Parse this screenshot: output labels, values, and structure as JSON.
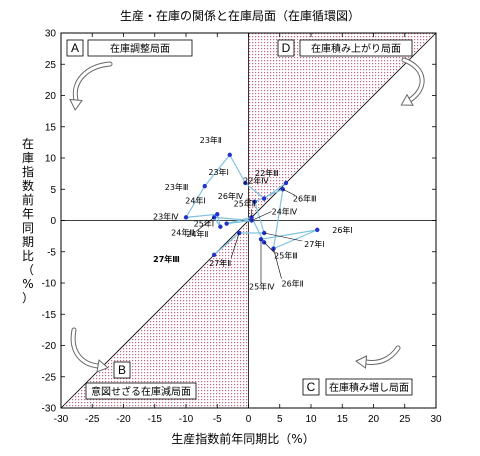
{
  "chart_data": {
    "type": "scatter",
    "title": "生産・在庫の関係と在庫局面（在庫循環図）",
    "xlabel": "生産指数前年同期比（%）",
    "ylabel": "在庫指数前年同期比（%）",
    "xlim": [
      -30,
      30
    ],
    "ylim": [
      -30,
      30
    ],
    "xticks": [
      -30,
      -25,
      -20,
      -15,
      -10,
      -5,
      0,
      5,
      10,
      15,
      20,
      25,
      30
    ],
    "yticks": [
      -30,
      -25,
      -20,
      -15,
      -10,
      -5,
      0,
      5,
      10,
      15,
      20,
      25,
      30
    ],
    "grid": false,
    "reference_line": "45-degree diagonal",
    "quadrants": [
      {
        "letter": "A",
        "name": "在庫調整局面"
      },
      {
        "letter": "B",
        "name": "意図せざる在庫減局面"
      },
      {
        "letter": "C",
        "name": "在庫積み増し局面"
      },
      {
        "letter": "D",
        "name": "在庫積み上がり局面"
      }
    ],
    "points": [
      {
        "label": "23年Ⅱ",
        "x": -3,
        "y": 10.5
      },
      {
        "label": "23年Ⅲ",
        "x": -7,
        "y": 5.5
      },
      {
        "label": "23年Ⅳ",
        "x": -10,
        "y": 0.5
      },
      {
        "label": "24年Ⅰ",
        "x": -5,
        "y": 1
      },
      {
        "label": "24年Ⅱ",
        "x": -4.5,
        "y": -1
      },
      {
        "label": "24年Ⅲ",
        "x": -5.5,
        "y": 0.5
      },
      {
        "label": "24年Ⅳ",
        "x": 0.5,
        "y": 0
      },
      {
        "label": "25年Ⅰ",
        "x": -3.5,
        "y": -0.5
      },
      {
        "label": "25年Ⅱ",
        "x": 0.5,
        "y": 0.5
      },
      {
        "label": "25年Ⅲ",
        "x": 2.5,
        "y": -3.5
      },
      {
        "label": "25年Ⅳ",
        "x": 2,
        "y": -3
      },
      {
        "label": "26年Ⅰ",
        "x": 11,
        "y": -1.5
      },
      {
        "label": "26年Ⅱ",
        "x": 4,
        "y": -4.5
      },
      {
        "label": "26年Ⅲ",
        "x": 5.5,
        "y": 5
      },
      {
        "label": "26年Ⅳ",
        "x": 1,
        "y": 3
      },
      {
        "label": "27年Ⅰ",
        "x": 2.5,
        "y": -2
      },
      {
        "label": "27年Ⅱ",
        "x": -1.5,
        "y": -2
      },
      {
        "label": "27年Ⅲ",
        "x": -5.5,
        "y": -5.5
      },
      {
        "label": "22年Ⅳ",
        "x": 2.5,
        "y": 3.5
      },
      {
        "label": "22年Ⅲ",
        "x": 6,
        "y": 6
      },
      {
        "label": "23年Ⅰ",
        "x": -0.5,
        "y": 6
      }
    ],
    "path": [
      "22年Ⅲ",
      "22年Ⅳ",
      "23年Ⅰ",
      "23年Ⅱ",
      "23年Ⅲ",
      "23年Ⅳ",
      "24年Ⅰ",
      "24年Ⅱ",
      "24年Ⅲ",
      "24年Ⅳ",
      "25年Ⅰ",
      "25年Ⅱ",
      "25年Ⅲ",
      "25年Ⅳ",
      "26年Ⅰ",
      "26年Ⅱ",
      "26年Ⅲ",
      "26年Ⅳ",
      "27年Ⅰ",
      "27年Ⅱ",
      "27年Ⅲ"
    ],
    "highlight_label": "27年Ⅲ",
    "colors": {
      "line": "#7fc4dc",
      "marker": "#2233cc",
      "shade": "#d9a3b3",
      "axis": "#000000"
    }
  }
}
